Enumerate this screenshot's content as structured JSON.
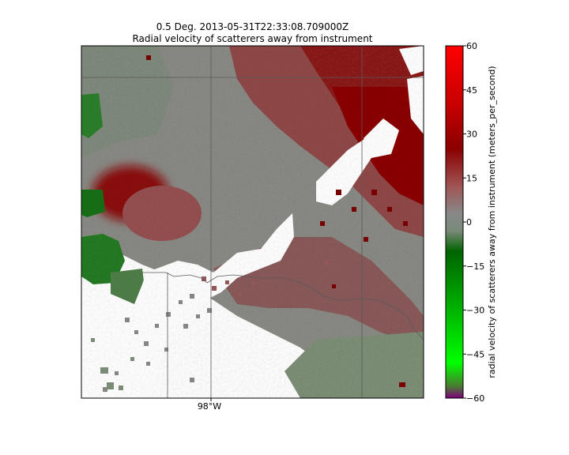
{
  "title": {
    "line1": "0.5 Deg. 2013-05-31T22:33:08.709000Z",
    "line2": "Radial velocity of scatterers away from instrument"
  },
  "map": {
    "longitude_labels": [
      {
        "text": "98°W",
        "value": -98
      }
    ]
  },
  "colorbar": {
    "label": "radial velocity of scatterers away from instrument (meters_per_second)",
    "ticks": [
      60,
      45,
      30,
      15,
      0,
      -15,
      -30,
      -45,
      -60
    ],
    "tick_labels": [
      "60",
      "45",
      "30",
      "15",
      "0",
      "−15",
      "−30",
      "−45",
      "−60"
    ],
    "range": [
      -60,
      60
    ],
    "stops": [
      {
        "value": 60,
        "color": "#ff0000"
      },
      {
        "value": 40,
        "color": "#c80000"
      },
      {
        "value": 25,
        "color": "#8b0000"
      },
      {
        "value": 12,
        "color": "#a05555"
      },
      {
        "value": 3,
        "color": "#888888"
      },
      {
        "value": -3,
        "color": "#7a8a7a"
      },
      {
        "value": -10,
        "color": "#006400"
      },
      {
        "value": -30,
        "color": "#00b400"
      },
      {
        "value": -48,
        "color": "#00ff00"
      },
      {
        "value": -56,
        "color": "#4a7a30"
      },
      {
        "value": -60,
        "color": "#800080"
      }
    ]
  },
  "colors": {
    "outbound_dark": "#8b0000",
    "outbound_mid": "#9e4b4b",
    "neutral": "#888888",
    "inbound_dark": "#1a6e1a",
    "inbound_light": "#7a9070",
    "border_line": "#555555"
  }
}
